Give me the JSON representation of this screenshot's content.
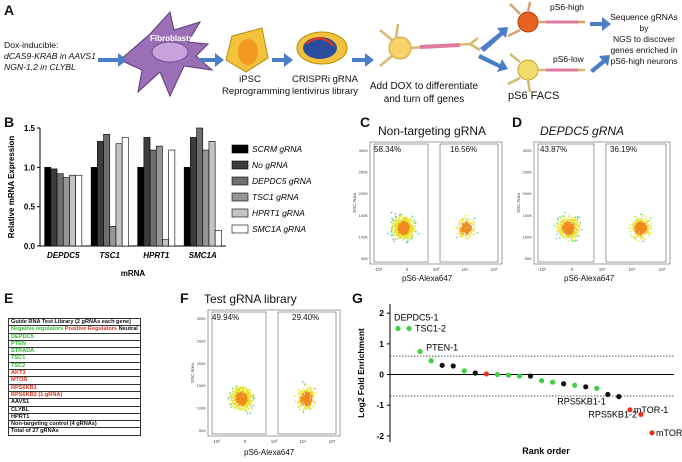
{
  "panel_letters": {
    "a": "A",
    "b": "B",
    "c": "C",
    "d": "D",
    "e": "E",
    "f": "F",
    "g": "G"
  },
  "panelA": {
    "dox_lines": [
      "Dox-inducible:",
      "dCAS9-KRAB in AAVS1",
      "NGN-1,2 in CLYBL"
    ],
    "fibroblasts": "Fibroblasts",
    "ipsc": [
      "iPSC",
      "Reprogramming"
    ],
    "crispri": [
      "CRISPRi gRNA",
      "lentivirus library"
    ],
    "add_dox": [
      "Add DOX to differentiate",
      "and turn off genes"
    ],
    "ps6_high": "pS6-high",
    "ps6_low": "pS6-low",
    "facs": "pS6 FACS",
    "sequence": [
      "Sequence gRNAs by",
      "NGS to discover",
      "genes enriched in",
      "pS6-high neurons"
    ]
  },
  "chart_data": [
    {
      "id": "B",
      "type": "bar",
      "ylabel": "Relative mRNA Expression",
      "xlabel": "mRNA",
      "ylim": [
        0,
        1.5
      ],
      "yticks": [
        "0.0",
        "0.5",
        "1.0",
        "1.5"
      ],
      "categories": [
        "DEPDC5",
        "TSC1",
        "HPRT1",
        "SMC1A"
      ],
      "series": [
        {
          "name": "SCRM gRNA",
          "values": [
            1.0,
            1.0,
            1.0,
            1.0
          ],
          "color": "#000000"
        },
        {
          "name": "No gRNA",
          "values": [
            0.98,
            1.33,
            1.38,
            1.38
          ],
          "color": "#3c3c3c"
        },
        {
          "name": "DEPDC5 gRNA",
          "values": [
            0.92,
            1.42,
            1.22,
            1.58
          ],
          "color": "#6e6e6e"
        },
        {
          "name": "TSC1 gRNA",
          "values": [
            0.87,
            0.25,
            1.27,
            1.22
          ],
          "color": "#969696"
        },
        {
          "name": "HPRT1 gRNA",
          "values": [
            0.9,
            1.3,
            0.08,
            1.33
          ],
          "color": "#c3c3c3"
        },
        {
          "name": "SMC1A gRNA",
          "values": [
            0.9,
            1.38,
            1.22,
            0.2
          ],
          "color": "#ffffff"
        }
      ]
    },
    {
      "id": "G",
      "type": "scatter",
      "ylabel": "Log2 Fold Enrichment",
      "xlabel": "Rank order",
      "ylim": [
        -2.2,
        2.3
      ],
      "yticks": [
        "-2",
        "-1",
        "0",
        "1",
        "2"
      ],
      "threshold_lines": [
        0.6,
        -0.7
      ],
      "points": [
        {
          "rank": 1,
          "y": 1.5,
          "color": "green",
          "label": "DEPDC5-1"
        },
        {
          "rank": 2,
          "y": 1.5,
          "color": "green",
          "label": "TSC1-2"
        },
        {
          "rank": 3,
          "y": 0.75,
          "color": "green",
          "label": "PTEN-1"
        },
        {
          "rank": 4,
          "y": 0.45,
          "color": "green",
          "label": ""
        },
        {
          "rank": 5,
          "y": 0.3,
          "color": "black",
          "label": ""
        },
        {
          "rank": 6,
          "y": 0.28,
          "color": "black",
          "label": ""
        },
        {
          "rank": 7,
          "y": 0.12,
          "color": "green",
          "label": ""
        },
        {
          "rank": 8,
          "y": 0.05,
          "color": "black",
          "label": ""
        },
        {
          "rank": 9,
          "y": 0.02,
          "color": "red",
          "label": ""
        },
        {
          "rank": 10,
          "y": 0.0,
          "color": "green",
          "label": ""
        },
        {
          "rank": 11,
          "y": -0.02,
          "color": "green",
          "label": ""
        },
        {
          "rank": 12,
          "y": -0.05,
          "color": "green",
          "label": ""
        },
        {
          "rank": 13,
          "y": -0.05,
          "color": "black",
          "label": ""
        },
        {
          "rank": 14,
          "y": -0.2,
          "color": "green",
          "label": ""
        },
        {
          "rank": 15,
          "y": -0.25,
          "color": "green",
          "label": ""
        },
        {
          "rank": 16,
          "y": -0.3,
          "color": "black",
          "label": ""
        },
        {
          "rank": 17,
          "y": -0.35,
          "color": "green",
          "label": ""
        },
        {
          "rank": 18,
          "y": -0.4,
          "color": "black",
          "label": ""
        },
        {
          "rank": 19,
          "y": -0.45,
          "color": "green",
          "label": ""
        },
        {
          "rank": 20,
          "y": -0.65,
          "color": "black",
          "label": "RPS5KB1-1"
        },
        {
          "rank": 21,
          "y": -0.72,
          "color": "black",
          "label": ""
        },
        {
          "rank": 22,
          "y": -1.15,
          "color": "red",
          "label": "mTOR-1"
        },
        {
          "rank": 23,
          "y": -1.3,
          "color": "red",
          "label": "RPS5KB1-2"
        },
        {
          "rank": 24,
          "y": -1.9,
          "color": "red",
          "label": "mTOR-2"
        }
      ]
    }
  ],
  "panelC": {
    "title": "Non-targeting gRNA",
    "left_pct": "58.34%",
    "right_pct": "16.56%",
    "xaxis": "pS6-Alexa647",
    "yaxis": "SSC Area"
  },
  "panelD": {
    "title": "DEPDC5 gRNA",
    "left_pct": "43.87%",
    "right_pct": "36.19%",
    "xaxis": "pS6-Alexa647",
    "yaxis": "SSC Area"
  },
  "panelF": {
    "title": "Test gRNA library",
    "left_pct": "49.94%",
    "right_pct": "29.40%",
    "xaxis": "pS6-Alexa647",
    "yaxis": "SSC Area"
  },
  "flow_ticks": {
    "y": [
      "300K",
      "250K",
      "200K",
      "150K",
      "100K",
      "50K"
    ],
    "x": [
      "-10³",
      "0",
      "10³",
      "10⁴",
      "10⁵"
    ]
  },
  "panelE": {
    "header": "Guide RNA Test Library (2 gRNAs each gene)",
    "legend": {
      "neg": "Negative regulators",
      "pos": "Positive Regulators",
      "neu": "Neutral"
    },
    "rows": [
      {
        "text": "DEPDC5",
        "cls": "neg"
      },
      {
        "text": "PTEN",
        "cls": "neg"
      },
      {
        "text": "STRADA",
        "cls": "neg"
      },
      {
        "text": "TSC1",
        "cls": "neg"
      },
      {
        "text": "TSC2",
        "cls": "neg"
      },
      {
        "text": "AKT3",
        "cls": "pos"
      },
      {
        "text": "MTOR",
        "cls": "pos"
      },
      {
        "text": "RPS6KB1",
        "cls": "pos"
      },
      {
        "text": "RPS6KB2 (1 gRNA)",
        "cls": "pos"
      },
      {
        "text": "AAVS1",
        "cls": "neu"
      },
      {
        "text": "CLYBL",
        "cls": "neu"
      },
      {
        "text": "HPRT1",
        "cls": "neu"
      },
      {
        "text": "Non-targeting control (4 gRNAs)",
        "cls": "neu"
      },
      {
        "text": "Total of 27 gRNAs",
        "cls": "neu"
      }
    ]
  },
  "colors": {
    "arrow": "#4a7fc8",
    "green": "#3fd13f",
    "red": "#e8321e",
    "black": "#111111"
  }
}
